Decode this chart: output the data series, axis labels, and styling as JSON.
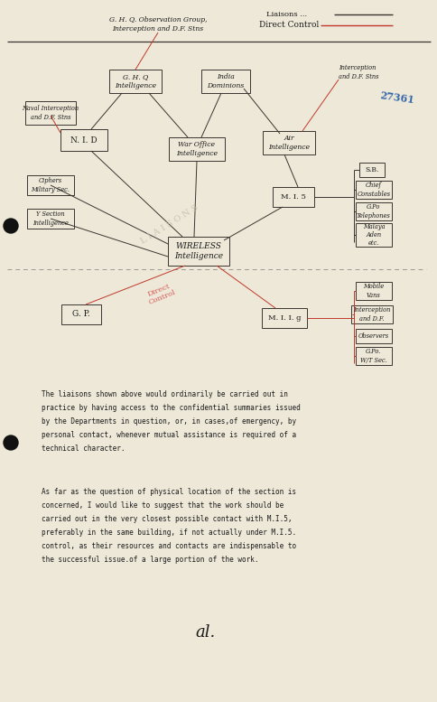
{
  "paper_color": "#ede8d8",
  "line_color_black": "#3a3530",
  "line_color_red": "#c0392b",
  "text_color": "#1a1a1a",
  "title_ghq": "G. H. Q. Observation Group,\nInterception and D.F. Stns",
  "title_liaisons": "Liaisons ...",
  "title_direct": "Direct Control",
  "node_wireless": "WIRELESS\nIntelligence",
  "node_nid": "N. I. D",
  "node_war": "War Office\nIntelligence",
  "node_air": "Air\nIntelligence",
  "node_mis": "M. I. 5",
  "node_gp": "G. P.",
  "node_miig": "M. I. I. g",
  "node_ghqi": "G. H. Q\nIntelligence",
  "node_india": "India\nDominions",
  "label_interc_top": "Interception\nand D.F. Stns",
  "label_naval": "Naval Interception\nand D.F. Stns",
  "label_ciphers": "Ciphers\nMilitary Sec.",
  "label_y_section": "Y Section\nIntelligence",
  "label_sb": "S.B.",
  "label_chief": "Chief\nConstables",
  "label_gpo": "G.Po\nTelephones",
  "label_malaya": "Malaya\nAden\netc.",
  "label_mobile": "Mobile\nVans",
  "label_interc_df": "Interception\nand D.F.",
  "label_observers": "Observers",
  "label_gprow": "G.Po.\nW/T Sec.",
  "label_liaisons_diag": "L I A I S O N S",
  "label_direct_diag": "Direct\nControl",
  "paragraph1": "The liaisons shown above would ordinarily be carried out in\npractice by having access to the confidential summaries issued\nby the Departments in question, or, in cases,of emergency, by\npersonal contact, whenever mutual assistance is required of a\ntechnical character.",
  "paragraph2": "As far as the question of physical location of the section is\nconcerned, I would like to suggest that the work should be\ncarried out in the very closest possible contact with M.I.5,\npreferably in the same building, if not actually under M.I.5.\ncontrol, as their resources and contacts are indispensable to\nthe successful issue.of a large portion of the work.",
  "signature": "al.",
  "stamp": "27361"
}
